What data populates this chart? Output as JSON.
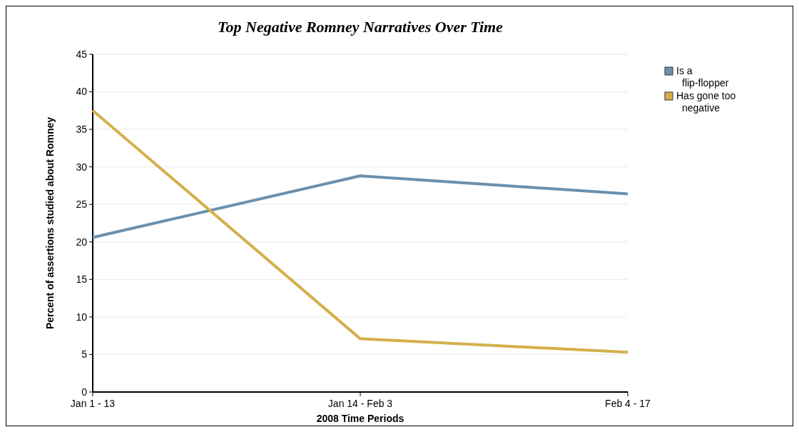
{
  "chart_data": {
    "type": "line",
    "title": "Top Negative Romney Narratives Over Time",
    "xlabel": "2008 Time Periods",
    "ylabel": "Percent of assertions studied about Romney",
    "categories": [
      "Jan 1 - 13",
      "Jan 14 - Feb 3",
      "Feb 4 - 17"
    ],
    "series": [
      {
        "name": "Is a flip-flopper",
        "color": "#6a90ae",
        "values": [
          20.6,
          28.8,
          26.4
        ]
      },
      {
        "name": "Has gone too negative",
        "color": "#d4b04c",
        "values": [
          37.5,
          7.1,
          5.3
        ]
      }
    ],
    "ylim": [
      0,
      45
    ],
    "yticks": [
      0,
      5,
      10,
      15,
      20,
      25,
      30,
      35,
      40,
      45
    ],
    "grid": "y",
    "legend": "top right",
    "marker": "none",
    "line_style": "solid"
  }
}
